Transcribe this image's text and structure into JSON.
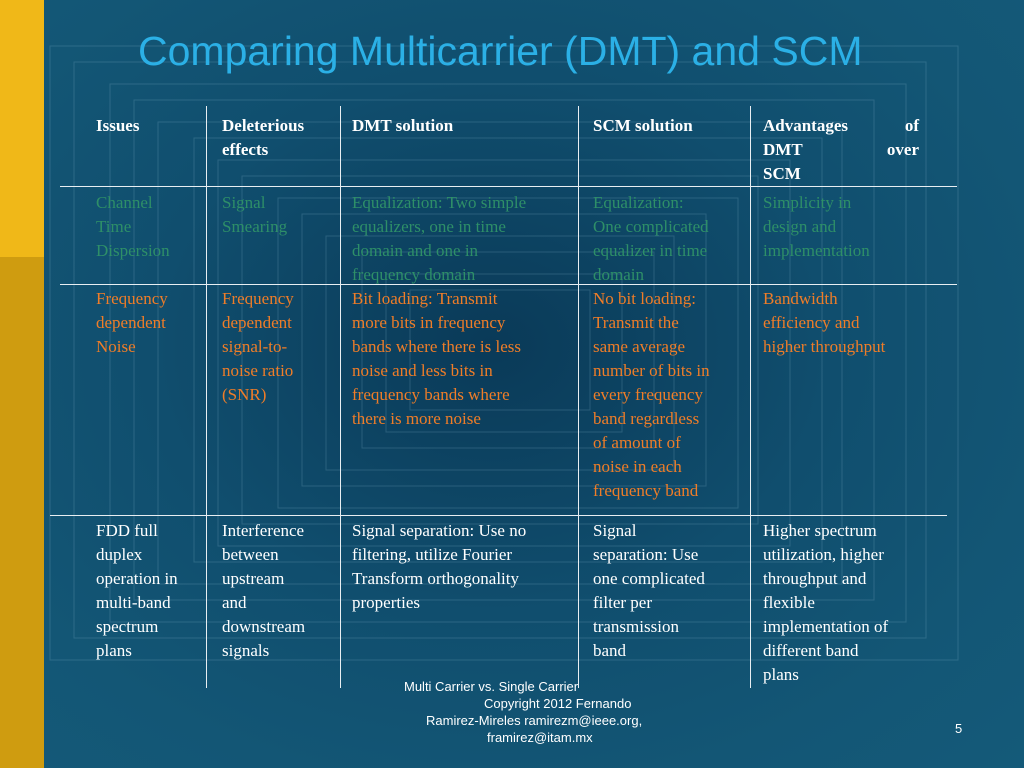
{
  "title": "Comparing Multicarrier (DMT) and SCM",
  "headers": [
    "Issues",
    "Deleterious effects",
    "DMT solution",
    "SCM solution",
    "Advantages of DMT over SCM"
  ],
  "header_lines": {
    "deleterious": [
      "Deleterious",
      "effects"
    ],
    "advantages": [
      [
        "Advantages",
        "of"
      ],
      [
        "DMT",
        "over"
      ],
      [
        "SCM"
      ]
    ]
  },
  "rows": [
    {
      "issue": [
        "Channel",
        "Time",
        "Dispersion"
      ],
      "effect": [
        "Signal",
        "Smearing"
      ],
      "dmt": [
        "Equalization: Two simple",
        "equalizers, one in time",
        "domain and one in",
        "frequency domain"
      ],
      "scm": [
        "Equalization:",
        "One complicated",
        "equalizer in time",
        "domain"
      ],
      "advantage": [
        "Simplicity in",
        "design and",
        "implementation"
      ]
    },
    {
      "issue": [
        "Frequency",
        "dependent",
        "Noise"
      ],
      "effect": [
        "Frequency",
        "dependent",
        "signal-to-",
        "noise ratio",
        "(SNR)"
      ],
      "dmt": [
        "Bit loading: Transmit",
        "more bits in frequency",
        "bands where there is less",
        "noise and less bits in",
        "frequency bands where",
        "there is more noise"
      ],
      "scm": [
        "No bit loading:",
        "Transmit the",
        "same average",
        "number of bits in",
        "every frequency",
        "band regardless",
        "of amount of",
        "noise in each",
        "frequency band"
      ],
      "advantage": [
        "Bandwidth",
        "efficiency and",
        "higher throughput"
      ]
    },
    {
      "issue": [
        "FDD full",
        "duplex",
        "operation in",
        "multi-band",
        "spectrum",
        "plans"
      ],
      "effect": [
        "Interference",
        "between",
        "upstream",
        "and",
        "downstream",
        "signals"
      ],
      "dmt": [
        "Signal separation: Use no",
        "filtering, utilize Fourier",
        "Transform orthogonality",
        "properties"
      ],
      "scm": [
        "Signal",
        "separation: Use",
        "one complicated",
        "filter per",
        "transmission",
        "band"
      ],
      "advantage": [
        "Higher spectrum",
        "utilization, higher",
        "throughput and",
        "flexible",
        "implementation of",
        "different band",
        "plans"
      ]
    }
  ],
  "footer": {
    "line1": "Multi Carrier vs. Single Carrier",
    "line2": "Copyright 2012 Fernando",
    "line3": "Ramirez-Mireles  ramirezm@ieee.org,",
    "line4": "framirez@itam.mx"
  },
  "page_number": "5",
  "colors": {
    "background": "#0e4e6e",
    "title": "#2bb0e6",
    "row1_text": "#2e8f68",
    "row2_text": "#ef7d28",
    "row3_text": "#ffffff",
    "sidebar": "#f0b818"
  }
}
